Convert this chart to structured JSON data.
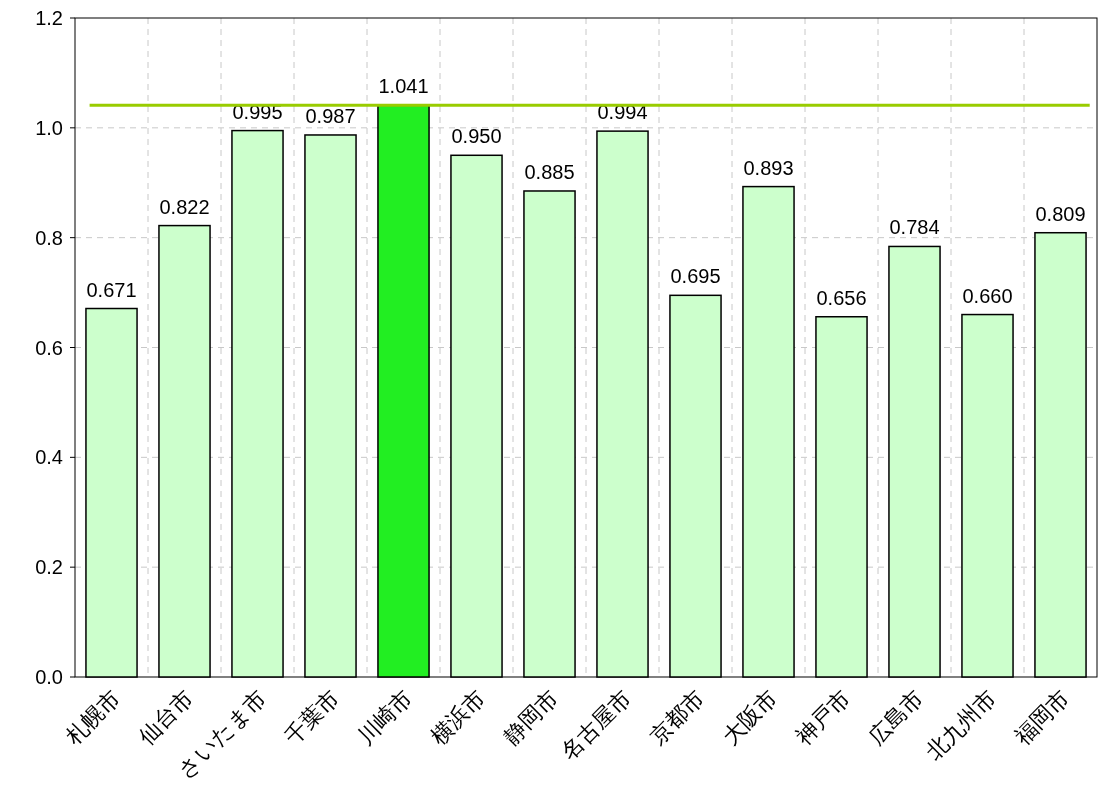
{
  "chart_data": {
    "type": "bar",
    "categories": [
      "札幌市",
      "仙台市",
      "さいたま市",
      "千葉市",
      "川崎市",
      "横浜市",
      "静岡市",
      "名古屋市",
      "京都市",
      "大阪市",
      "神戸市",
      "広島市",
      "北九州市",
      "福岡市"
    ],
    "values": [
      0.671,
      0.822,
      0.995,
      0.987,
      1.041,
      0.95,
      0.885,
      0.994,
      0.695,
      0.893,
      0.656,
      0.784,
      0.66,
      0.809
    ],
    "colors": [
      "#ccffcc",
      "#ccffcc",
      "#ccffcc",
      "#ccffcc",
      "#22ee22",
      "#ccffcc",
      "#ccffcc",
      "#ccffcc",
      "#ccffcc",
      "#ccffcc",
      "#ccffcc",
      "#ccffcc",
      "#ccffcc",
      "#ccffcc"
    ],
    "ylim": [
      0,
      1.2
    ],
    "yticks": [
      {
        "value": 0,
        "label": "0.0"
      },
      {
        "value": 0.2,
        "label": "0.2"
      },
      {
        "value": 0.4,
        "label": "0.4"
      },
      {
        "value": 0.6,
        "label": "0.6"
      },
      {
        "value": 0.8,
        "label": "0.8"
      },
      {
        "value": 1.0,
        "label": "1.0"
      },
      {
        "value": 1.2,
        "label": "1.2"
      }
    ],
    "ref_lines": [
      {
        "axis": "y",
        "value": 1.041,
        "color": "#99cc00"
      }
    ],
    "value_labels": [
      "0.671",
      "0.822",
      "0.995",
      "0.987",
      "1.041",
      "0.950",
      "0.885",
      "0.994",
      "0.695",
      "0.893",
      "0.656",
      "0.784",
      "0.660",
      "0.809"
    ],
    "grid": true
  }
}
